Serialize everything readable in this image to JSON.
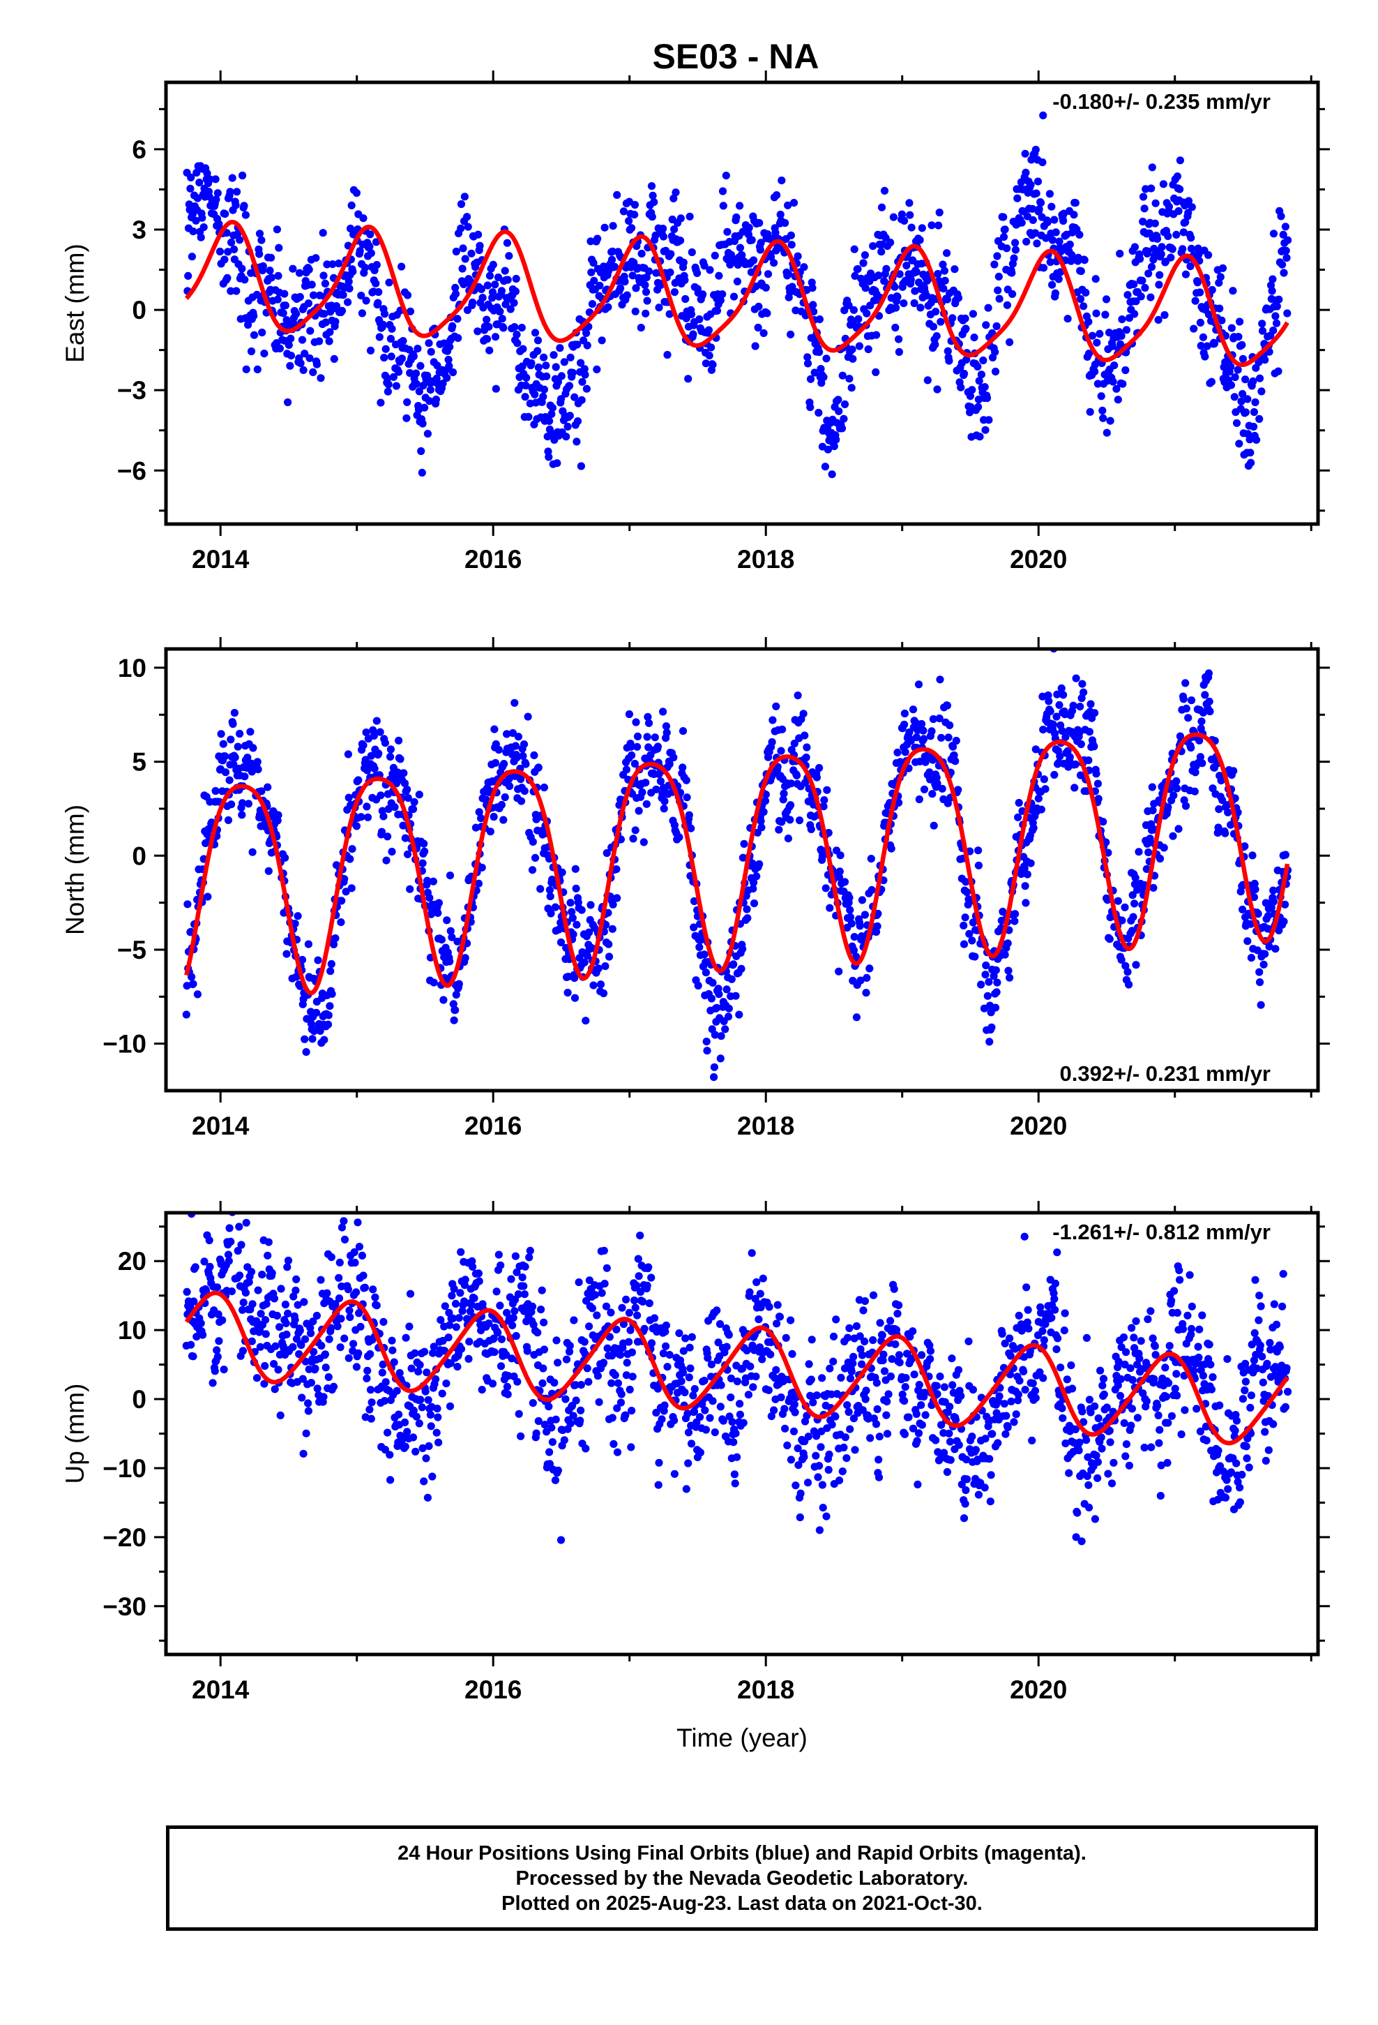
{
  "title": "SE03 - NA",
  "colors": {
    "final_orbits": "#0000ff",
    "fit_line": "#ff0000",
    "axes": "#000000"
  },
  "chart_data": [
    {
      "type": "scatter",
      "panel": "east",
      "ylabel": "East (mm)",
      "xlabel": "",
      "annotation": "-0.180+/- 0.235 mm/yr",
      "annotation_placement": "top-right",
      "xlim": [
        2013.6,
        2022.05
      ],
      "ylim": [
        -8,
        8.5
      ],
      "xticks": [
        2014,
        2016,
        2018,
        2020
      ],
      "xtick_labels": [
        "2014",
        "2016",
        "2018",
        "2020"
      ],
      "yticks": [
        -6,
        -3,
        0,
        3,
        6
      ],
      "ytick_labels": [
        "−6",
        "−3",
        "0",
        "3",
        "6"
      ],
      "data_range_x": [
        2013.75,
        2021.83
      ],
      "model": {
        "offset": 0.35,
        "trend": -0.18,
        "annual_amp": 1.9,
        "annual_phase": 1.2,
        "semi_amp": 0.4,
        "semi_phase": 0.0
      },
      "data_anchors": [
        [
          2013.8,
          2.9
        ],
        [
          2014.0,
          3.0
        ],
        [
          2014.3,
          0.0
        ],
        [
          2014.5,
          -1.8
        ],
        [
          2014.8,
          0.6
        ],
        [
          2015.0,
          2.0
        ],
        [
          2015.3,
          -0.3
        ],
        [
          2015.5,
          -2.5
        ],
        [
          2015.8,
          0.9
        ],
        [
          2016.0,
          1.2
        ],
        [
          2016.3,
          -1.8
        ],
        [
          2016.5,
          -2.2
        ],
        [
          2016.8,
          0.6
        ],
        [
          2017.0,
          1.8
        ],
        [
          2017.3,
          1.3
        ],
        [
          2017.5,
          -0.8
        ],
        [
          2017.8,
          1.8
        ],
        [
          2018.0,
          1.9
        ],
        [
          2018.3,
          -0.8
        ],
        [
          2018.5,
          -1.8
        ],
        [
          2018.8,
          2.0
        ],
        [
          2019.0,
          3.0
        ],
        [
          2019.3,
          0.5
        ],
        [
          2019.5,
          -2.5
        ],
        [
          2019.8,
          2.8
        ],
        [
          2020.0,
          5.0
        ],
        [
          2020.3,
          0.0
        ],
        [
          2020.5,
          -1.5
        ],
        [
          2020.8,
          2.5
        ],
        [
          2021.0,
          3.0
        ],
        [
          2021.3,
          -0.5
        ],
        [
          2021.5,
          -4.0
        ],
        [
          2021.8,
          1.5
        ]
      ],
      "noise_sd": 1.1
    },
    {
      "type": "scatter",
      "panel": "north",
      "ylabel": "North (mm)",
      "xlabel": "",
      "annotation": "0.392+/- 0.231 mm/yr",
      "annotation_placement": "bottom-right",
      "xlim": [
        2013.6,
        2022.05
      ],
      "ylim": [
        -12.5,
        11
      ],
      "xticks": [
        2014,
        2016,
        2018,
        2020
      ],
      "xtick_labels": [
        "2014",
        "2016",
        "2018",
        "2020"
      ],
      "yticks": [
        -10,
        -5,
        0,
        5,
        10
      ],
      "ytick_labels": [
        "−10",
        "−5",
        "0",
        "5",
        "10"
      ],
      "data_range_x": [
        2013.75,
        2021.83
      ],
      "model": {
        "offset": 0.6,
        "trend": 0.392,
        "annual_amp": 5.6,
        "annual_phase": 0.55,
        "semi_amp": 1.0,
        "semi_phase": 2.6
      },
      "data_anchors": [],
      "noise_sd": 1.3
    },
    {
      "type": "scatter",
      "panel": "up",
      "ylabel": "Up (mm)",
      "xlabel": "Time (year)",
      "annotation": "-1.261+/- 0.812 mm/yr",
      "annotation_placement": "top-right",
      "xlim": [
        2013.6,
        2022.05
      ],
      "ylim": [
        -37,
        27
      ],
      "xticks": [
        2014,
        2016,
        2018,
        2020
      ],
      "xtick_labels": [
        "2014",
        "2016",
        "2018",
        "2020"
      ],
      "yticks": [
        -30,
        -20,
        -10,
        0,
        10,
        20
      ],
      "ytick_labels": [
        "−30",
        "−20",
        "−10",
        "0",
        "10",
        "20"
      ],
      "data_range_x": [
        2013.75,
        2021.83
      ],
      "model": {
        "offset": 4.0,
        "trend": -1.261,
        "annual_amp": 6.0,
        "annual_phase": 2.0,
        "semi_amp": 0.8,
        "semi_phase": 1.0
      },
      "data_anchors": [],
      "noise_sd": 4.8
    }
  ],
  "footer": {
    "line1": "24 Hour Positions Using Final Orbits (blue) and Rapid Orbits (magenta).",
    "line2": "Processed by the Nevada Geodetic Laboratory.",
    "line3": "Plotted on 2025-Aug-23. Last data on 2021-Oct-30."
  }
}
